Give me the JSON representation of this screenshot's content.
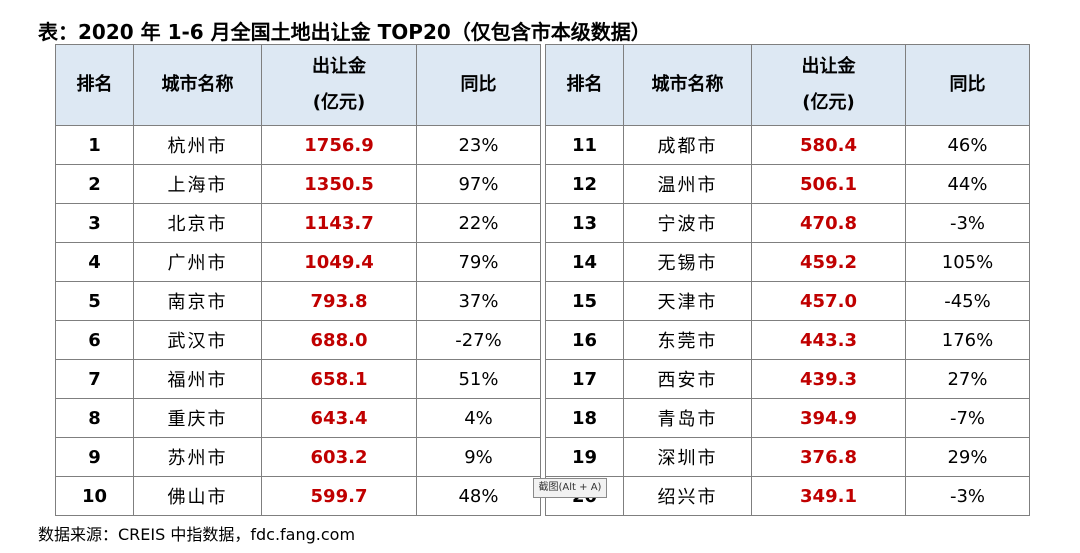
{
  "title": "表：2020 年 1-6 月全国土地出让金 TOP20（仅包含市本级数据）",
  "headers": {
    "rank": "排名",
    "city": "城市名称",
    "amount_line1": "出让金",
    "amount_line2": "(亿元)",
    "yoy": "同比"
  },
  "left_rows": [
    {
      "rank": "1",
      "city": "杭州市",
      "amount": "1756.9",
      "yoy": "23%"
    },
    {
      "rank": "2",
      "city": "上海市",
      "amount": "1350.5",
      "yoy": "97%"
    },
    {
      "rank": "3",
      "city": "北京市",
      "amount": "1143.7",
      "yoy": "22%"
    },
    {
      "rank": "4",
      "city": "广州市",
      "amount": "1049.4",
      "yoy": "79%"
    },
    {
      "rank": "5",
      "city": "南京市",
      "amount": "793.8",
      "yoy": "37%"
    },
    {
      "rank": "6",
      "city": "武汉市",
      "amount": "688.0",
      "yoy": "-27%"
    },
    {
      "rank": "7",
      "city": "福州市",
      "amount": "658.1",
      "yoy": "51%"
    },
    {
      "rank": "8",
      "city": "重庆市",
      "amount": "643.4",
      "yoy": "4%"
    },
    {
      "rank": "9",
      "city": "苏州市",
      "amount": "603.2",
      "yoy": "9%"
    },
    {
      "rank": "10",
      "city": "佛山市",
      "amount": "599.7",
      "yoy": "48%"
    }
  ],
  "right_rows": [
    {
      "rank": "11",
      "city": "成都市",
      "amount": "580.4",
      "yoy": "46%"
    },
    {
      "rank": "12",
      "city": "温州市",
      "amount": "506.1",
      "yoy": "44%"
    },
    {
      "rank": "13",
      "city": "宁波市",
      "amount": "470.8",
      "yoy": "-3%"
    },
    {
      "rank": "14",
      "city": "无锡市",
      "amount": "459.2",
      "yoy": "105%"
    },
    {
      "rank": "15",
      "city": "天津市",
      "amount": "457.0",
      "yoy": "-45%"
    },
    {
      "rank": "16",
      "city": "东莞市",
      "amount": "443.3",
      "yoy": "176%"
    },
    {
      "rank": "17",
      "city": "西安市",
      "amount": "439.3",
      "yoy": "27%"
    },
    {
      "rank": "18",
      "city": "青岛市",
      "amount": "394.9",
      "yoy": "-7%"
    },
    {
      "rank": "19",
      "city": "深圳市",
      "amount": "376.8",
      "yoy": "29%"
    },
    {
      "rank": "20",
      "city": "绍兴市",
      "amount": "349.1",
      "yoy": "-3%"
    }
  ],
  "source": "数据来源：CREIS 中指数据，fdc.fang.com",
  "tooltip": "截图(Alt + A)",
  "colors": {
    "header_bg": "#dde8f3",
    "amount_text": "#c00000",
    "border": "#7f7f7f"
  }
}
